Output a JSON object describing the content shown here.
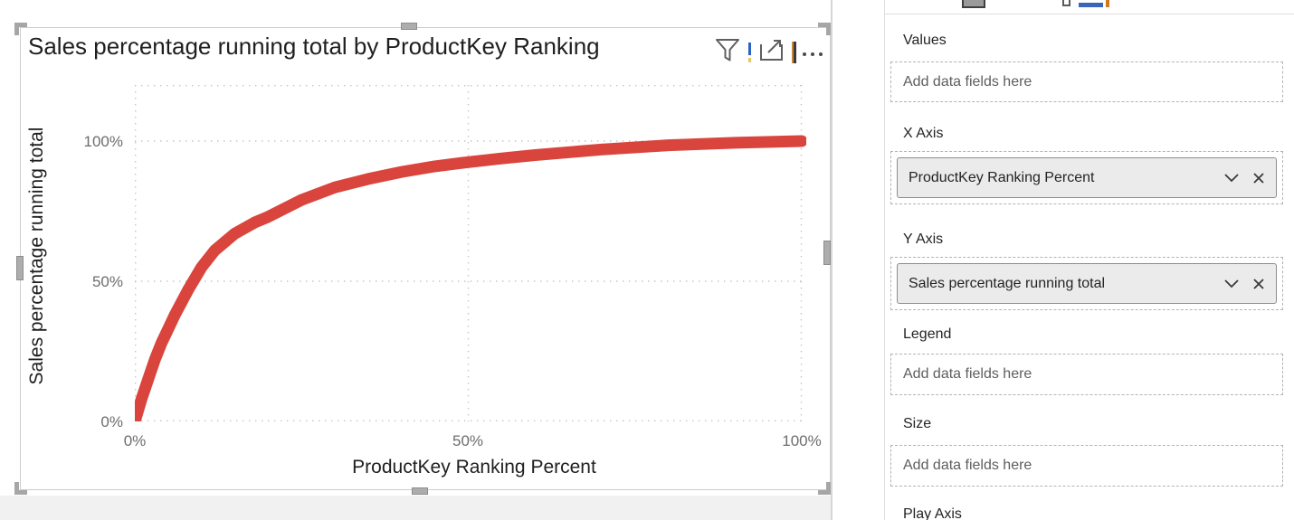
{
  "visual": {
    "title": "Sales percentage running total by ProductKey Ranking",
    "header_icons": [
      "filter-funnel",
      "alert-exclamation",
      "focus-mode",
      "cursor-bar",
      "more-options"
    ]
  },
  "chart_data": {
    "type": "scatter",
    "title": "Sales percentage running total by ProductKey Ranking",
    "xlabel": "ProductKey Ranking Percent",
    "ylabel": "Sales percentage running total",
    "x_ticks": [
      "0%",
      "50%",
      "100%"
    ],
    "y_ticks": [
      "0%",
      "50%",
      "100%"
    ],
    "xlim": [
      0,
      100
    ],
    "ylim": [
      0,
      120
    ],
    "grid": "dotted",
    "legend": "none",
    "series": [
      {
        "name": "Sales percentage running total",
        "color": "#d9453d",
        "thickness": 13,
        "points": [
          [
            0,
            0
          ],
          [
            1,
            8
          ],
          [
            2,
            15
          ],
          [
            3,
            22
          ],
          [
            4,
            28
          ],
          [
            5,
            33
          ],
          [
            6,
            38
          ],
          [
            8,
            47
          ],
          [
            10,
            55
          ],
          [
            12,
            61
          ],
          [
            15,
            67
          ],
          [
            18,
            71
          ],
          [
            20,
            73
          ],
          [
            25,
            79
          ],
          [
            30,
            83.5
          ],
          [
            35,
            86.5
          ],
          [
            40,
            89
          ],
          [
            45,
            91
          ],
          [
            50,
            92.5
          ],
          [
            55,
            93.8
          ],
          [
            60,
            95
          ],
          [
            70,
            97
          ],
          [
            80,
            98.5
          ],
          [
            90,
            99.4
          ],
          [
            100,
            100
          ]
        ]
      }
    ]
  },
  "panel": {
    "sections": [
      {
        "label": "Values",
        "placeholder": "Add data fields here"
      },
      {
        "label": "X Axis",
        "field": "ProductKey Ranking Percent"
      },
      {
        "label": "Y Axis",
        "field": "Sales percentage running total"
      },
      {
        "label": "Legend",
        "placeholder": "Add data fields here"
      },
      {
        "label": "Size",
        "placeholder": "Add data fields here"
      },
      {
        "label": "Play Axis"
      }
    ]
  }
}
